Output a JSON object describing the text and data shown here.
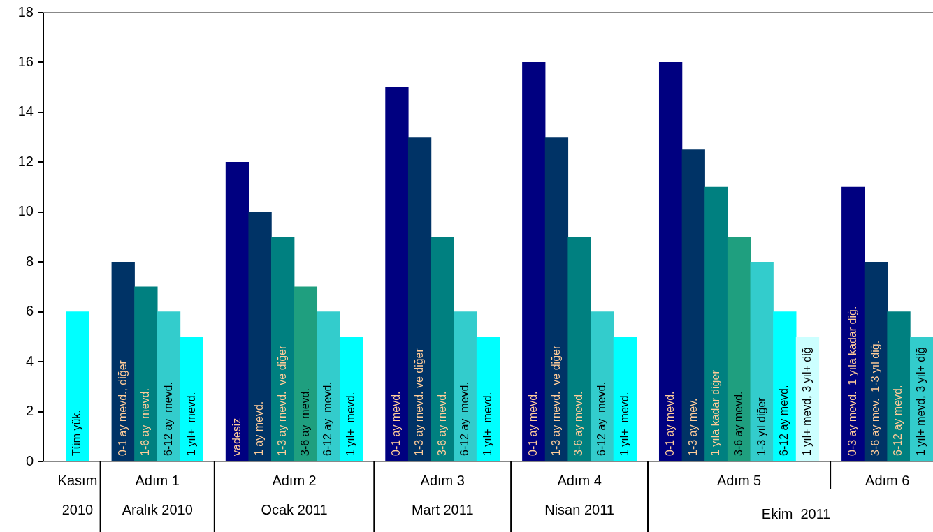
{
  "chart_data": {
    "type": "bar",
    "categories": [
      null,
      "Tüm yük.",
      null,
      "0-1 ay mevd., diğer",
      "1-6 ay  mevd.",
      "6-12 ay  mevd.",
      "1 yıl+  mevd.",
      null,
      "vadesiz",
      "1 ay mevd.",
      "1-3 ay mevd.  ve diğer",
      "3-6 ay  mevd.",
      "6-12 ay  mevd.",
      "1 yıl+  mevd.",
      null,
      "0-1 ay mevd.",
      "1-3 ay mevd. ve diğer",
      "3-6 ay mevd.",
      "6-12 ay  mevd.",
      "1 yıl+  mevd.",
      null,
      "0-1 ay mevd.",
      "1-3 ay mevd.  ve diğer",
      "3-6 ay mevd.",
      "6-12 ay  mevd.",
      "1 yıl+  mevd.",
      null,
      "0-1 ay mevd.",
      "1-3 ay mev.",
      "1 yıla kadar diğer",
      "3-6 ay mevd.",
      "1-3 yıl diğer",
      "6-12 ay mevd.",
      "1 yıl+ mevd, 3 yıl+ diğ",
      null,
      "0-3 ay mevd.  1 yıla kadar diğ.",
      "3-6 ay mev.  1-3 yıl diğ.",
      "6-12 ay mevd.",
      "1 yıl+ mevd, 3 yıl+ diğ"
    ],
    "values": [
      null,
      6,
      null,
      8,
      7,
      6,
      5,
      null,
      12,
      10,
      9,
      7,
      6,
      5,
      null,
      15,
      13,
      9,
      6,
      5,
      null,
      16,
      13,
      9,
      6,
      5,
      null,
      16,
      12.5,
      11,
      9,
      8,
      6,
      5,
      null,
      11,
      8,
      6,
      5
    ],
    "colors": [
      null,
      "#00ffff",
      null,
      "#003366",
      "#008080",
      "#33cccc",
      "#00ffff",
      null,
      "#000080",
      "#003366",
      "#008080",
      "#1f9f7f",
      "#33cccc",
      "#00ffff",
      null,
      "#000080",
      "#003366",
      "#008080",
      "#33cccc",
      "#00ffff",
      null,
      "#000080",
      "#003366",
      "#008080",
      "#33cccc",
      "#00ffff",
      null,
      "#000080",
      "#003366",
      "#008080",
      "#1f9f7f",
      "#33cccc",
      "#00ffff",
      "#ccffff",
      null,
      "#000080",
      "#003366",
      "#008080",
      "#33cccc"
    ],
    "ylim": [
      0,
      18
    ],
    "yticks": [
      0,
      2,
      4,
      6,
      8,
      10,
      12,
      14,
      16,
      18
    ],
    "grid": false,
    "legend": false,
    "annotations": [
      "Kasım\n2010",
      "Adım 1\nAralık 2010",
      "Adım 2\nOcak 2011",
      "Adım 3\nMart 2011",
      "Adım 4\nNisan 2011",
      "Adım 5",
      "Adım 6",
      "Ekim  2011"
    ]
  }
}
